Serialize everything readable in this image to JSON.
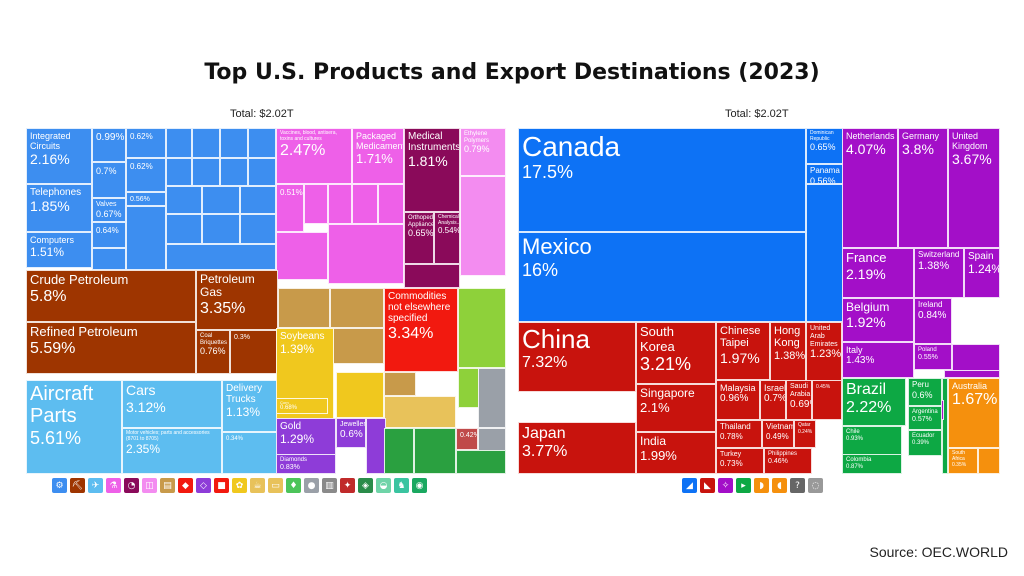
{
  "header": {
    "title": "Top U.S. Products and Export Destinations (2023)"
  },
  "source": "Source: OEC.WORLD",
  "chart_data": [
    {
      "type": "treemap",
      "total_label": "Total: $2.02T",
      "nodes": [
        {
          "name": "Integrated Circuits",
          "value": 2.16,
          "label": "2.16%",
          "color": "#3d8ef0"
        },
        {
          "name": "Telephones",
          "value": 1.85,
          "label": "1.85%",
          "color": "#3d8ef0"
        },
        {
          "name": "Computers",
          "value": 1.51,
          "label": "1.51%",
          "color": "#3d8ef0"
        },
        {
          "name": "",
          "value": 0.99,
          "label": "0.99%",
          "color": "#3d8ef0"
        },
        {
          "name": "",
          "value": 0.7,
          "label": "0.7%",
          "color": "#3d8ef0"
        },
        {
          "name": "Valves",
          "value": 0.67,
          "label": "0.67%",
          "color": "#3d8ef0"
        },
        {
          "name": "",
          "value": 0.64,
          "label": "0.64%",
          "color": "#3d8ef0"
        },
        {
          "name": "",
          "value": 0.62,
          "label": "0.62%",
          "color": "#3d8ef0"
        },
        {
          "name": "",
          "value": 0.62,
          "label": "0.62%",
          "color": "#3d8ef0"
        },
        {
          "name": "",
          "value": 0.56,
          "label": "0.56%",
          "color": "#3d8ef0"
        },
        {
          "name": "Crude Petroleum",
          "value": 5.8,
          "label": "5.8%",
          "color": "#9e3500"
        },
        {
          "name": "Refined Petroleum",
          "value": 5.59,
          "label": "5.59%",
          "color": "#9e3500"
        },
        {
          "name": "Petroleum Gas",
          "value": 3.35,
          "label": "3.35%",
          "color": "#9e3500"
        },
        {
          "name": "Coal Briquettes",
          "value": 0.76,
          "label": "0.76%",
          "color": "#9e3500"
        },
        {
          "name": "",
          "value": 0.3,
          "label": "0.3%",
          "color": "#9e3500"
        },
        {
          "name": "Aircraft Parts",
          "value": 5.61,
          "label": "5.61%",
          "color": "#5dbdf0"
        },
        {
          "name": "Cars",
          "value": 3.12,
          "label": "3.12%",
          "color": "#5dbdf0"
        },
        {
          "name": "Motor vehicles; parts and accessories (8701 to 8705)",
          "value": 2.35,
          "label": "2.35%",
          "color": "#5dbdf0"
        },
        {
          "name": "Delivery Trucks",
          "value": 1.13,
          "label": "1.13%",
          "color": "#5dbdf0"
        },
        {
          "name": "",
          "value": 0.34,
          "label": "0.34%",
          "color": "#5dbdf0"
        },
        {
          "name": "Vaccines, blood, antisera, toxins and cultures",
          "value": 2.47,
          "label": "2.47%",
          "color": "#ee60e8"
        },
        {
          "name": "Packaged Medicaments",
          "value": 1.71,
          "label": "1.71%",
          "color": "#ee60e8"
        },
        {
          "name": "Medical Instruments",
          "value": 1.81,
          "label": "1.81%",
          "color": "#8a0a5a"
        },
        {
          "name": "Orthopedic Appliances",
          "value": 0.65,
          "label": "0.65%",
          "color": "#8a0a5a"
        },
        {
          "name": "Chemical Analysis...",
          "value": 0.54,
          "label": "0.54%",
          "color": "#8a0a5a"
        },
        {
          "name": "Ethylene Polymers",
          "value": 0.79,
          "label": "0.79%",
          "color": "#f38cf0"
        },
        {
          "name": "",
          "value": 0.51,
          "label": "0.51%",
          "color": "#ee60e8"
        },
        {
          "name": "Commodities not elsewhere specified",
          "value": 3.34,
          "label": "3.34%",
          "color": "#f2190f"
        },
        {
          "name": "Soybeans",
          "value": 1.39,
          "label": "1.39%",
          "color": "#f0c81e"
        },
        {
          "name": "Corn",
          "value": 0.68,
          "label": "0.68%",
          "color": "#f0c81e"
        },
        {
          "name": "Gold",
          "value": 1.29,
          "label": "1.29%",
          "color": "#8e3cd8"
        },
        {
          "name": "Jewellery",
          "value": 0.6,
          "label": "0.6%",
          "color": "#8e3cd8"
        },
        {
          "name": "Diamonds",
          "value": 0.83,
          "label": "0.83%",
          "color": "#8e3cd8"
        },
        {
          "name": "",
          "value": 0.42,
          "label": "0.42%",
          "color": "#c04a4a"
        }
      ]
    },
    {
      "type": "treemap",
      "total_label": "Total: $2.02T",
      "nodes": [
        {
          "name": "Canada",
          "value": 17.5,
          "label": "17.5%",
          "color": "#0d72f5"
        },
        {
          "name": "Mexico",
          "value": 16,
          "label": "16%",
          "color": "#0d72f5"
        },
        {
          "name": "Dominican Republic",
          "value": 0.65,
          "label": "0.65%",
          "color": "#0d72f5"
        },
        {
          "name": "Panama",
          "value": 0.56,
          "label": "0.56%",
          "color": "#0d72f5"
        },
        {
          "name": "China",
          "value": 7.32,
          "label": "7.32%",
          "color": "#c8130d"
        },
        {
          "name": "Japan",
          "value": 3.77,
          "label": "3.77%",
          "color": "#c8130d"
        },
        {
          "name": "South Korea",
          "value": 3.21,
          "label": "3.21%",
          "color": "#c8130d"
        },
        {
          "name": "Singapore",
          "value": 2.1,
          "label": "2.1%",
          "color": "#c8130d"
        },
        {
          "name": "India",
          "value": 1.99,
          "label": "1.99%",
          "color": "#c8130d"
        },
        {
          "name": "Chinese Taipei",
          "value": 1.97,
          "label": "1.97%",
          "color": "#c8130d"
        },
        {
          "name": "Hong Kong",
          "value": 1.38,
          "label": "1.38%",
          "color": "#c8130d"
        },
        {
          "name": "United Arab Emirates",
          "value": 1.23,
          "label": "1.23%",
          "color": "#c8130d"
        },
        {
          "name": "Malaysia",
          "value": 0.96,
          "label": "0.96%",
          "color": "#c8130d"
        },
        {
          "name": "Israel",
          "value": 0.7,
          "label": "0.7%",
          "color": "#c8130d"
        },
        {
          "name": "Saudi Arabia",
          "value": 0.69,
          "label": "0.69%",
          "color": "#c8130d"
        },
        {
          "name": "",
          "value": 0.45,
          "label": "0.45%",
          "color": "#c8130d"
        },
        {
          "name": "Thailand",
          "value": 0.78,
          "label": "0.78%",
          "color": "#c8130d"
        },
        {
          "name": "Vietnam",
          "value": 0.49,
          "label": "0.49%",
          "color": "#c8130d"
        },
        {
          "name": "Qatar",
          "value": 0.24,
          "label": "0.24%",
          "color": "#c8130d"
        },
        {
          "name": "Turkey",
          "value": 0.73,
          "label": "0.73%",
          "color": "#c8130d"
        },
        {
          "name": "Philippines",
          "value": 0.46,
          "label": "0.46%",
          "color": "#c8130d"
        },
        {
          "name": "Netherlands",
          "value": 4.07,
          "label": "4.07%",
          "color": "#a30fc8"
        },
        {
          "name": "Germany",
          "value": 3.8,
          "label": "3.8%",
          "color": "#a30fc8"
        },
        {
          "name": "United Kingdom",
          "value": 3.67,
          "label": "3.67%",
          "color": "#a30fc8"
        },
        {
          "name": "France",
          "value": 2.19,
          "label": "2.19%",
          "color": "#a30fc8"
        },
        {
          "name": "Switzerland",
          "value": 1.38,
          "label": "1.38%",
          "color": "#a30fc8"
        },
        {
          "name": "Spain",
          "value": 1.24,
          "label": "1.24%",
          "color": "#a30fc8"
        },
        {
          "name": "Belgium",
          "value": 1.92,
          "label": "1.92%",
          "color": "#a30fc8"
        },
        {
          "name": "Ireland",
          "value": 0.84,
          "label": "0.84%",
          "color": "#a30fc8"
        },
        {
          "name": "Italy",
          "value": 1.43,
          "label": "1.43%",
          "color": "#a30fc8"
        },
        {
          "name": "Poland",
          "value": 0.55,
          "label": "0.55%",
          "color": "#a30fc8"
        },
        {
          "name": "Sweden",
          "value": 0.43,
          "label": "0.43%",
          "color": "#a30fc8"
        },
        {
          "name": "Brazil",
          "value": 2.22,
          "label": "2.22%",
          "color": "#0da844"
        },
        {
          "name": "Chile",
          "value": 0.93,
          "label": "0.93%",
          "color": "#0da844"
        },
        {
          "name": "Colombia",
          "value": 0.87,
          "label": "0.87%",
          "color": "#0da844"
        },
        {
          "name": "Peru",
          "value": 0.6,
          "label": "0.6%",
          "color": "#0da844"
        },
        {
          "name": "Argentina",
          "value": 0.57,
          "label": "0.57%",
          "color": "#0da844"
        },
        {
          "name": "Ecuador",
          "value": 0.39,
          "label": "0.39%",
          "color": "#0da844"
        },
        {
          "name": "Australia",
          "value": 1.67,
          "label": "1.67%",
          "color": "#f5900d"
        },
        {
          "name": "South Africa",
          "value": 0.35,
          "label": "0.35%",
          "color": "#f5900d"
        }
      ]
    }
  ]
}
